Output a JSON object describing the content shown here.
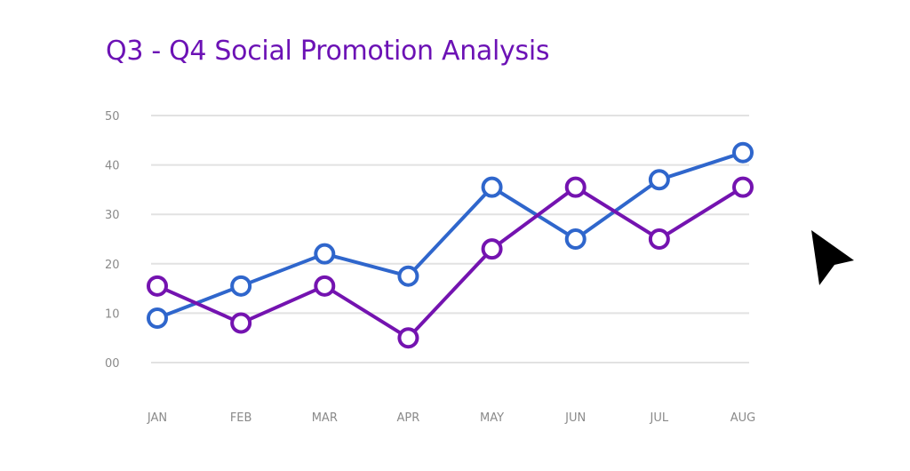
{
  "chart_data": {
    "type": "line",
    "title": "Q3 - Q4 Social Promotion Analysis",
    "xlabel": "",
    "ylabel": "",
    "categories": [
      "JAN",
      "FEB",
      "MAR",
      "APR",
      "MAY",
      "JUN",
      "JUL",
      "AUG"
    ],
    "y_ticks": [
      "00",
      "10",
      "20",
      "30",
      "40",
      "50"
    ],
    "ylim": [
      0,
      50
    ],
    "grid": true,
    "legend": "none",
    "series": [
      {
        "color": "#2f66cc",
        "values": [
          9,
          15.5,
          22,
          17.5,
          35.5,
          25,
          37,
          42.5
        ]
      },
      {
        "color": "#7413b0",
        "values": [
          15.5,
          8,
          15.5,
          5,
          23,
          35.5,
          25,
          35.5
        ]
      }
    ],
    "title_color": "#6c12b5",
    "grid_color": "#e2e2e2"
  },
  "cursor": {
    "icon": "mouse-pointer-icon",
    "color": "#000000"
  }
}
